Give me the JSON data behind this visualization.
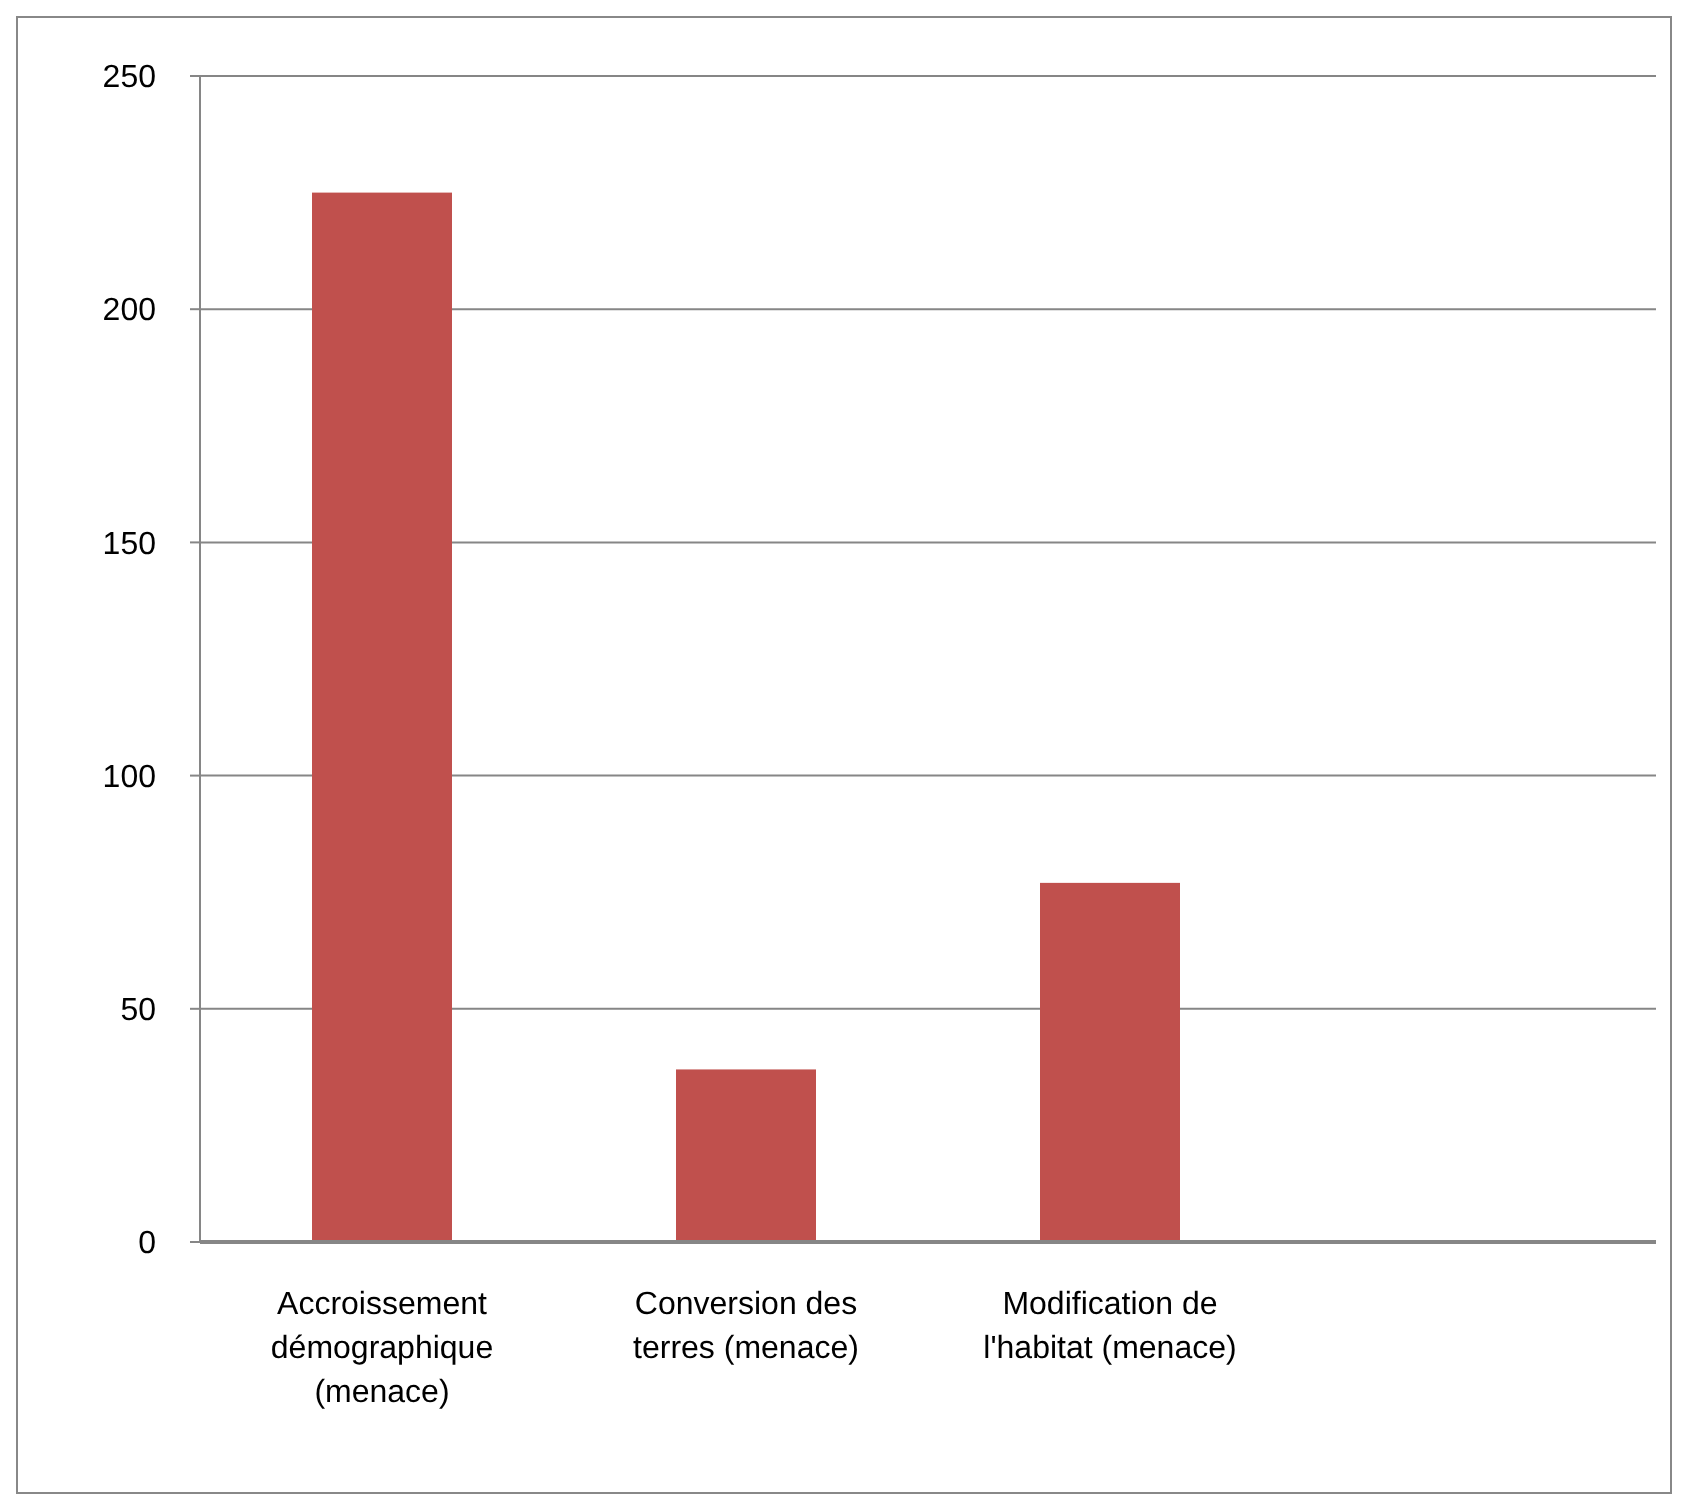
{
  "chart_data": {
    "type": "bar",
    "categories": [
      "Accroissement démographique (menace)",
      "Conversion des terres (menace)",
      "Modification de l'habitat (menace)",
      null
    ],
    "values": [
      225,
      37,
      77,
      0
    ],
    "color": "#c0504d",
    "ylim": [
      0,
      250
    ],
    "yticks": [
      0,
      50,
      100,
      150,
      200,
      250
    ],
    "grid": "y"
  }
}
